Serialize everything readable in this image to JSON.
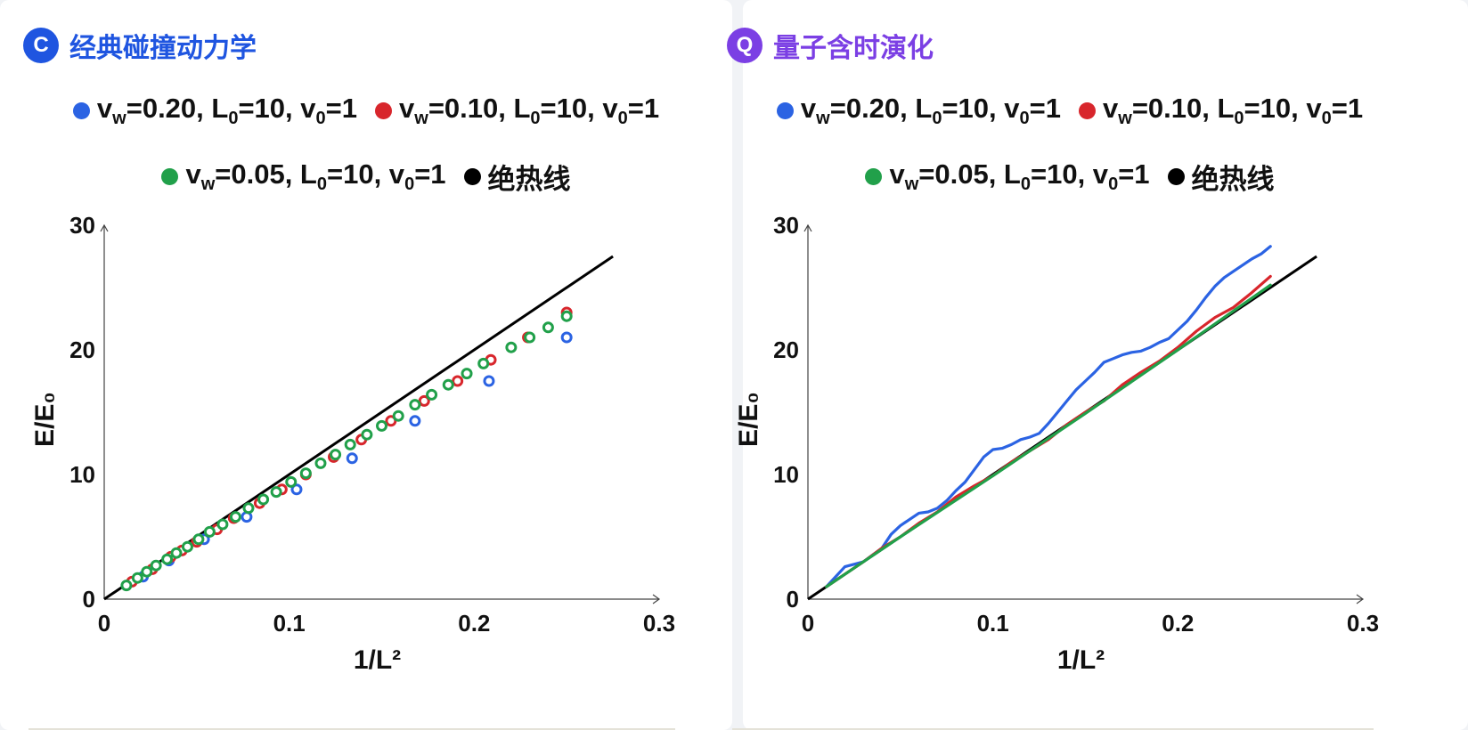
{
  "panels": [
    {
      "badge": "C",
      "badge_color": "#1f55e0",
      "title": "经典碰撞动力学",
      "title_color": "#1f55e0",
      "legend": {
        "row1": [
          {
            "color": "#2b63e3",
            "base": "v",
            "sub": "w",
            "rest1": "=0.20, L",
            "sub2": "0",
            "rest2": "=10, v",
            "sub3": "0",
            "rest3": "=1"
          },
          {
            "color": "#d8262c",
            "base": "v",
            "sub": "w",
            "rest1": "=0.10, L",
            "sub2": "0",
            "rest2": "=10, v",
            "sub3": "0",
            "rest3": "=1"
          }
        ],
        "row2": [
          {
            "color": "#21a04a",
            "base": "v",
            "sub": "w",
            "rest1": "=0.05, L",
            "sub2": "0",
            "rest2": "=10, v",
            "sub3": "0",
            "rest3": "=1"
          }
        ],
        "adiabatic_label": "绝热线",
        "adiabatic_color": "#000000"
      }
    },
    {
      "badge": "Q",
      "badge_color": "#7b3fe4",
      "title": "量子含时演化",
      "title_color": "#7b3fe4",
      "legend": {
        "row1": [
          {
            "color": "#2b63e3",
            "base": "v",
            "sub": "w",
            "rest1": "=0.20, L",
            "sub2": "0",
            "rest2": "=10, v",
            "sub3": "0",
            "rest3": "=1"
          },
          {
            "color": "#d8262c",
            "base": "v",
            "sub": "w",
            "rest1": "=0.10, L",
            "sub2": "0",
            "rest2": "=10, v",
            "sub3": "0",
            "rest3": "=1"
          }
        ],
        "row2": [
          {
            "color": "#21a04a",
            "base": "v",
            "sub": "w",
            "rest1": "=0.05, L",
            "sub2": "0",
            "rest2": "=10, v",
            "sub3": "0",
            "rest3": "=1"
          }
        ],
        "adiabatic_label": "绝热线",
        "adiabatic_color": "#000000"
      }
    }
  ],
  "chart_data": [
    {
      "type": "scatter",
      "xlabel": "1/L²",
      "ylabel": "E/E₀",
      "xlim": [
        0,
        0.3
      ],
      "ylim": [
        0,
        30
      ],
      "xticks": [
        0,
        0.1,
        0.2,
        0.3
      ],
      "yticks": [
        0,
        10,
        20,
        30
      ],
      "xtick_labels": [
        "0",
        "0.1",
        "0.2",
        "0.3"
      ],
      "ytick_labels": [
        "0",
        "10",
        "20",
        "30"
      ],
      "adiabatic_line": {
        "x": [
          0,
          0.275
        ],
        "y": [
          0,
          27.5
        ],
        "color": "#000000"
      },
      "series": [
        {
          "color": "#2b63e3",
          "marker": "open-circle",
          "x": [
            0.021,
            0.035,
            0.054,
            0.077,
            0.104,
            0.134,
            0.168,
            0.208,
            0.25
          ],
          "y": [
            1.8,
            3.1,
            4.8,
            6.6,
            8.8,
            11.3,
            14.3,
            17.5,
            21.0
          ]
        },
        {
          "color": "#d8262c",
          "marker": "open-circle",
          "x": [
            0.015,
            0.026,
            0.036,
            0.042,
            0.05,
            0.061,
            0.07,
            0.084,
            0.096,
            0.109,
            0.124,
            0.139,
            0.155,
            0.173,
            0.191,
            0.209,
            0.229,
            0.25
          ],
          "y": [
            1.4,
            2.4,
            3.4,
            3.9,
            4.6,
            5.6,
            6.5,
            7.7,
            8.8,
            10.0,
            11.4,
            12.8,
            14.3,
            15.9,
            17.5,
            19.2,
            21.0,
            23.0
          ]
        },
        {
          "color": "#21a04a",
          "marker": "open-circle",
          "x": [
            0.012,
            0.018,
            0.023,
            0.028,
            0.034,
            0.039,
            0.045,
            0.051,
            0.057,
            0.064,
            0.071,
            0.078,
            0.086,
            0.093,
            0.101,
            0.109,
            0.117,
            0.125,
            0.133,
            0.142,
            0.15,
            0.159,
            0.168,
            0.177,
            0.186,
            0.196,
            0.205,
            0.22,
            0.23,
            0.24,
            0.25
          ],
          "y": [
            1.1,
            1.7,
            2.2,
            2.7,
            3.2,
            3.7,
            4.2,
            4.8,
            5.4,
            6.0,
            6.6,
            7.3,
            8.0,
            8.6,
            9.4,
            10.1,
            10.9,
            11.6,
            12.4,
            13.2,
            13.9,
            14.7,
            15.6,
            16.4,
            17.2,
            18.1,
            18.9,
            20.2,
            21.0,
            21.8,
            22.7
          ]
        }
      ]
    },
    {
      "type": "line",
      "xlabel": "1/L²",
      "ylabel": "E/E₀",
      "xlim": [
        0,
        0.3
      ],
      "ylim": [
        0,
        30
      ],
      "xticks": [
        0,
        0.1,
        0.2,
        0.3
      ],
      "yticks": [
        0,
        10,
        20,
        30
      ],
      "xtick_labels": [
        "0",
        "0.1",
        "0.2",
        "0.3"
      ],
      "ytick_labels": [
        "0",
        "10",
        "20",
        "30"
      ],
      "adiabatic_line": {
        "x": [
          0,
          0.275
        ],
        "y": [
          0,
          27.5
        ],
        "color": "#000000"
      },
      "series": [
        {
          "color": "#2b63e3",
          "x": [
            0.01,
            0.02,
            0.03,
            0.04,
            0.045,
            0.05,
            0.055,
            0.06,
            0.065,
            0.07,
            0.075,
            0.08,
            0.085,
            0.09,
            0.095,
            0.1,
            0.105,
            0.11,
            0.115,
            0.12,
            0.125,
            0.13,
            0.135,
            0.14,
            0.145,
            0.15,
            0.155,
            0.16,
            0.165,
            0.17,
            0.175,
            0.18,
            0.185,
            0.19,
            0.195,
            0.2,
            0.205,
            0.21,
            0.215,
            0.22,
            0.225,
            0.23,
            0.235,
            0.24,
            0.245,
            0.25
          ],
          "y": [
            1.0,
            2.6,
            3.0,
            4.1,
            5.2,
            5.9,
            6.4,
            6.9,
            7.0,
            7.3,
            7.9,
            8.7,
            9.4,
            10.4,
            11.4,
            12.0,
            12.1,
            12.4,
            12.8,
            13.0,
            13.3,
            14.1,
            15.0,
            15.9,
            16.8,
            17.5,
            18.2,
            19.0,
            19.3,
            19.6,
            19.8,
            19.9,
            20.2,
            20.6,
            20.9,
            21.6,
            22.3,
            23.2,
            24.2,
            25.1,
            25.8,
            26.3,
            26.8,
            27.3,
            27.7,
            28.3
          ]
        },
        {
          "color": "#d8262c",
          "x": [
            0.01,
            0.02,
            0.03,
            0.04,
            0.05,
            0.06,
            0.07,
            0.08,
            0.09,
            0.1,
            0.11,
            0.12,
            0.13,
            0.14,
            0.15,
            0.16,
            0.17,
            0.18,
            0.19,
            0.2,
            0.21,
            0.22,
            0.23,
            0.24,
            0.25
          ],
          "y": [
            1.0,
            2.0,
            3.0,
            4.1,
            5.0,
            6.1,
            7.0,
            8.2,
            9.1,
            9.9,
            11.0,
            11.9,
            12.8,
            14.0,
            15.0,
            15.9,
            17.2,
            18.2,
            19.1,
            20.2,
            21.5,
            22.6,
            23.4,
            24.6,
            25.9
          ]
        },
        {
          "color": "#21a04a",
          "x": [
            0.01,
            0.05,
            0.1,
            0.15,
            0.2,
            0.25
          ],
          "y": [
            1.0,
            5.0,
            9.9,
            14.9,
            20.0,
            25.2
          ]
        }
      ]
    }
  ]
}
